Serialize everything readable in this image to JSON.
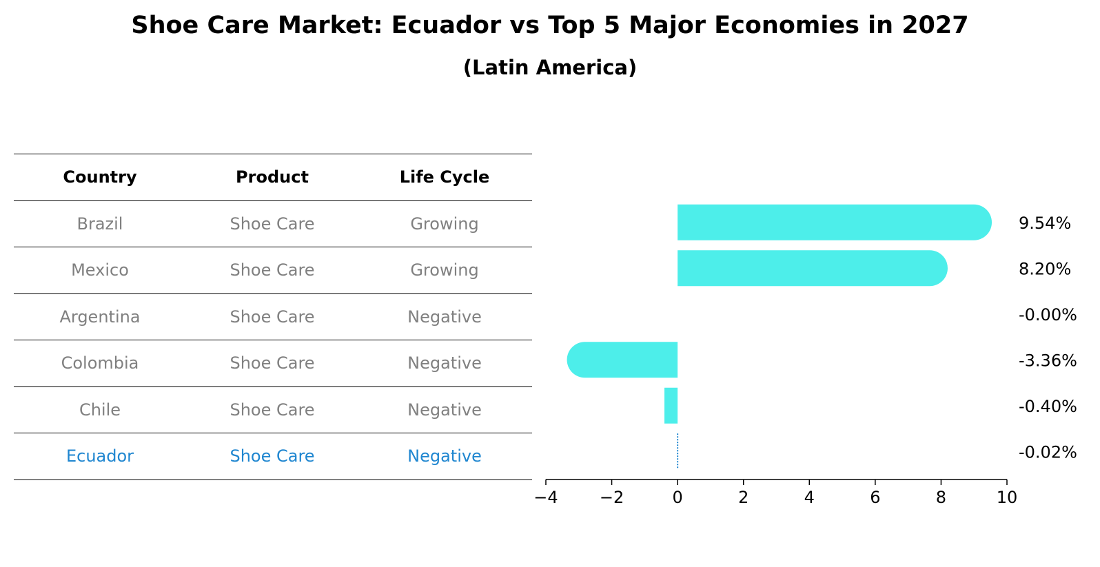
{
  "title": "Shoe Care Market: Ecuador vs Top 5 Major Economies in 2027",
  "subtitle": "(Latin America)",
  "table": {
    "headers": [
      "Country",
      "Product",
      "Life Cycle"
    ],
    "rows": [
      {
        "country": "Brazil",
        "product": "Shoe Care",
        "life_cycle": "Growing"
      },
      {
        "country": "Mexico",
        "product": "Shoe Care",
        "life_cycle": "Growing"
      },
      {
        "country": "Argentina",
        "product": "Shoe Care",
        "life_cycle": "Negative"
      },
      {
        "country": "Colombia",
        "product": "Shoe Care",
        "life_cycle": "Negative"
      },
      {
        "country": "Chile",
        "product": "Shoe Care",
        "life_cycle": "Negative"
      },
      {
        "country": "Ecuador",
        "product": "Shoe Care",
        "life_cycle": "Negative"
      }
    ],
    "highlight_country": "Ecuador"
  },
  "chart_data": {
    "type": "bar",
    "orientation": "horizontal",
    "categories": [
      "Brazil",
      "Mexico",
      "Argentina",
      "Colombia",
      "Chile",
      "Ecuador"
    ],
    "values": [
      9.54,
      8.2,
      -0.0,
      -3.36,
      -0.4,
      -0.02
    ],
    "value_labels": [
      "9.54%",
      "8.20%",
      "-0.00%",
      "-3.36%",
      "-0.40%",
      "-0.02%"
    ],
    "xlim": [
      -4,
      10
    ],
    "xticks": [
      -4,
      -2,
      0,
      2,
      4,
      6,
      8,
      10
    ],
    "xtick_labels": [
      "−4",
      "−2",
      "0",
      "2",
      "4",
      "6",
      "8",
      "10"
    ],
    "grid": false,
    "colors": {
      "bar": "#4deeea",
      "highlight": "#1f86d0",
      "axis": "#000000",
      "label": "#000000"
    }
  }
}
